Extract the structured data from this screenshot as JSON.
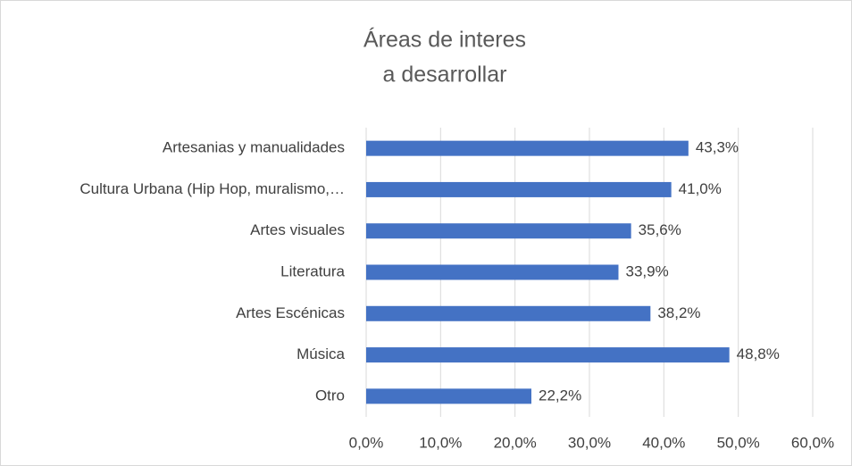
{
  "chart_data": {
    "type": "bar",
    "orientation": "horizontal",
    "title": [
      "Áreas de interes",
      "a desarrollar"
    ],
    "categories": [
      "Artesanias y manualidades",
      "Cultura Urbana (Hip Hop, muralismo,…",
      "Artes visuales",
      "Literatura",
      "Artes Escénicas",
      "Música",
      "Otro"
    ],
    "values": [
      43.3,
      41.0,
      35.6,
      33.9,
      38.2,
      48.8,
      22.2
    ],
    "value_labels": [
      "43,3%",
      "41,0%",
      "35,6%",
      "33,9%",
      "38,2%",
      "48,8%",
      "22,2%"
    ],
    "color": "#4472c4",
    "xlim": [
      0,
      60
    ],
    "xticks": [
      {
        "value": 0,
        "label": "0,0%"
      },
      {
        "value": 10,
        "label": "10,0%"
      },
      {
        "value": 20,
        "label": "20,0%"
      },
      {
        "value": 30,
        "label": "30,0%"
      },
      {
        "value": 40,
        "label": "40,0%"
      },
      {
        "value": 50,
        "label": "50,0%"
      },
      {
        "value": 60,
        "label": "60,0%"
      }
    ],
    "grid": true
  }
}
